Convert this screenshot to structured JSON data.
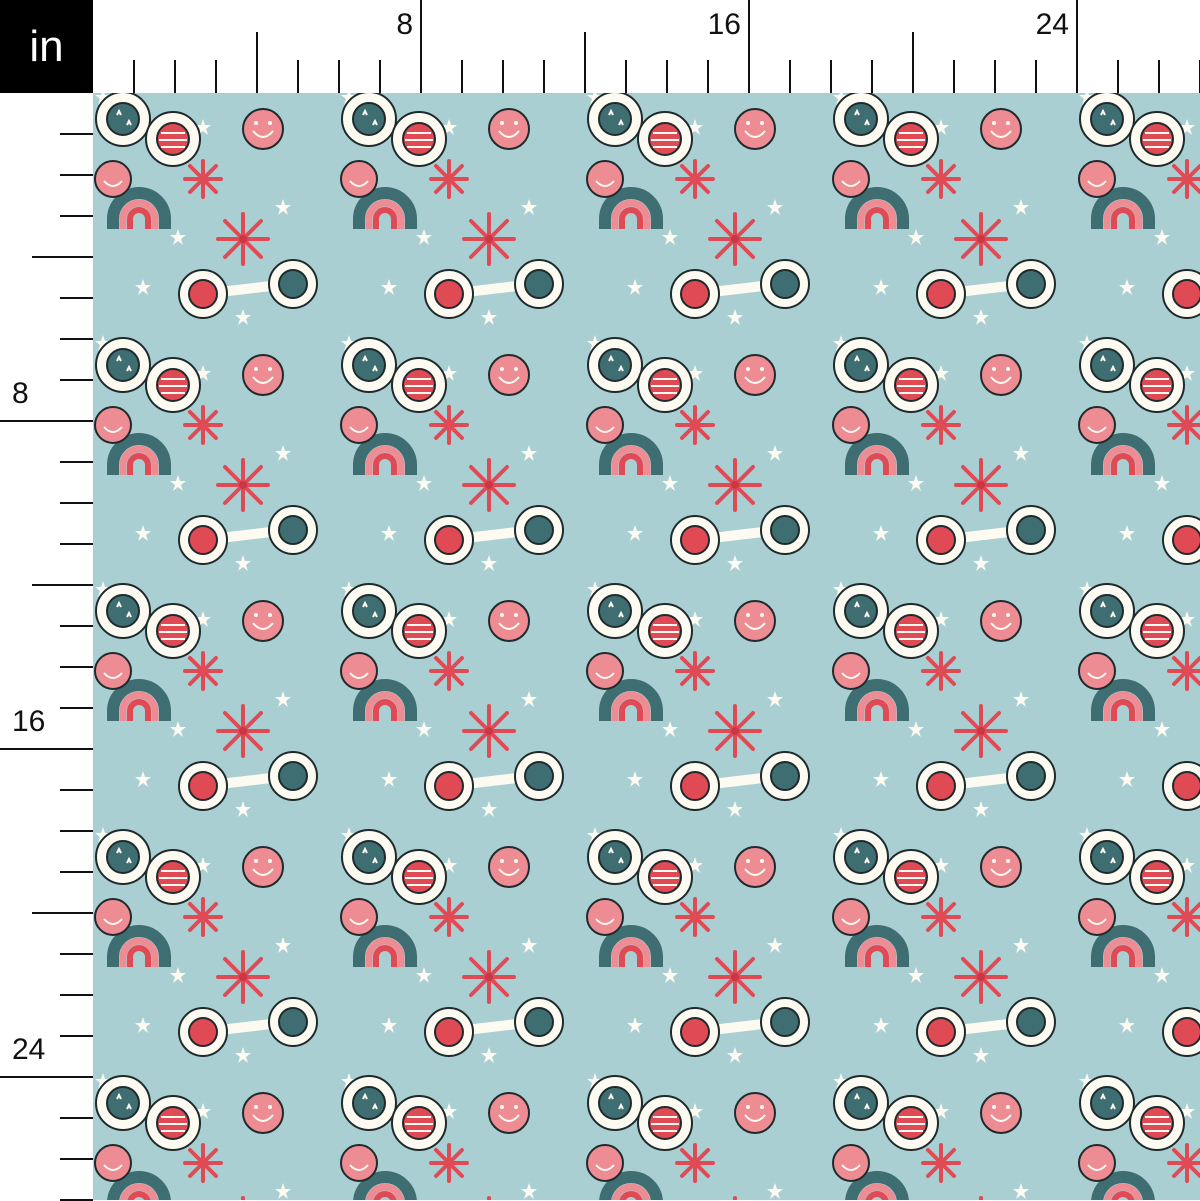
{
  "ruler": {
    "unit": "in",
    "major_labels": [
      "8",
      "16",
      "24"
    ],
    "major_every_inches": 8,
    "medium_every_inches": 4
  },
  "fabric": {
    "description_colors": {
      "background": "#a9cfd3",
      "red": "#e04a55",
      "pink": "#ee8c93",
      "teal": "#3e6e72",
      "cream": "#fdfaf2",
      "outline": "#1e2a2b"
    },
    "motifs": [
      "flower-sunglasses-stars",
      "flower-sunglasses-stripes",
      "smiley-face",
      "rainbow",
      "firework",
      "star"
    ]
  }
}
